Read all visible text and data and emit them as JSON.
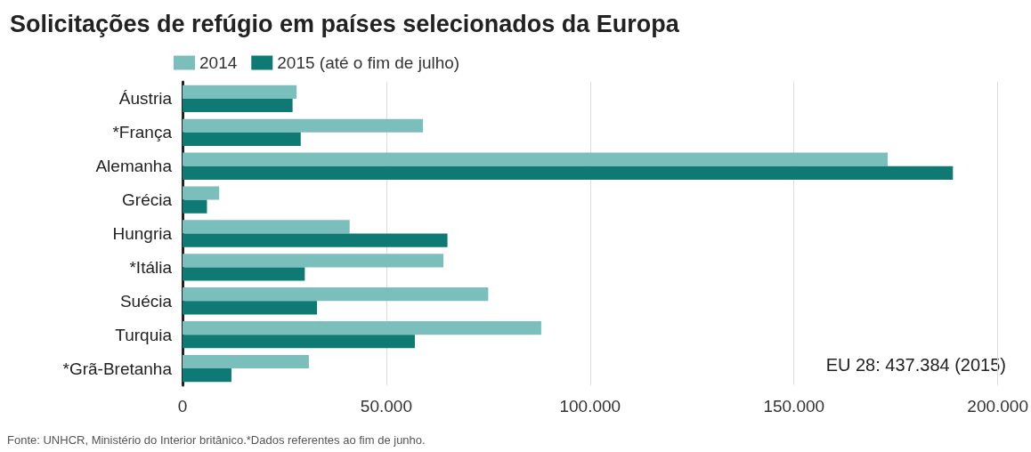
{
  "chart_data": {
    "type": "bar",
    "orientation": "horizontal",
    "title": "Solicitações de refúgio em países selecionados da Europa",
    "categories": [
      "Áustria",
      "*França",
      "Alemanha",
      "Grécia",
      "Hungria",
      "*Itália",
      "Suécia",
      "Turquia",
      "*Grã-Bretanha"
    ],
    "series": [
      {
        "name": "2014",
        "color": "#7bbfbd",
        "values": [
          28000,
          59000,
          173000,
          9000,
          41000,
          64000,
          75000,
          88000,
          31000
        ]
      },
      {
        "name": "2015 (até o fim de julho)",
        "color": "#0f7a73",
        "values": [
          27000,
          29000,
          189000,
          6000,
          65000,
          30000,
          33000,
          57000,
          12000
        ]
      }
    ],
    "xlim": [
      0,
      200000
    ],
    "xticks": [
      {
        "value": 0,
        "label": "0"
      },
      {
        "value": 50000,
        "label": "50.000"
      },
      {
        "value": 100000,
        "label": "100.000"
      },
      {
        "value": 150000,
        "label": "150.000"
      },
      {
        "value": 200000,
        "label": "200.000"
      }
    ],
    "grid": "x",
    "legend": "top",
    "annotations": [
      "EU 28: 437.384 (2015)",
      "Fonte: UNHCR, Ministério do Interior britânico.*Dados referentes ao fim de junho."
    ]
  }
}
